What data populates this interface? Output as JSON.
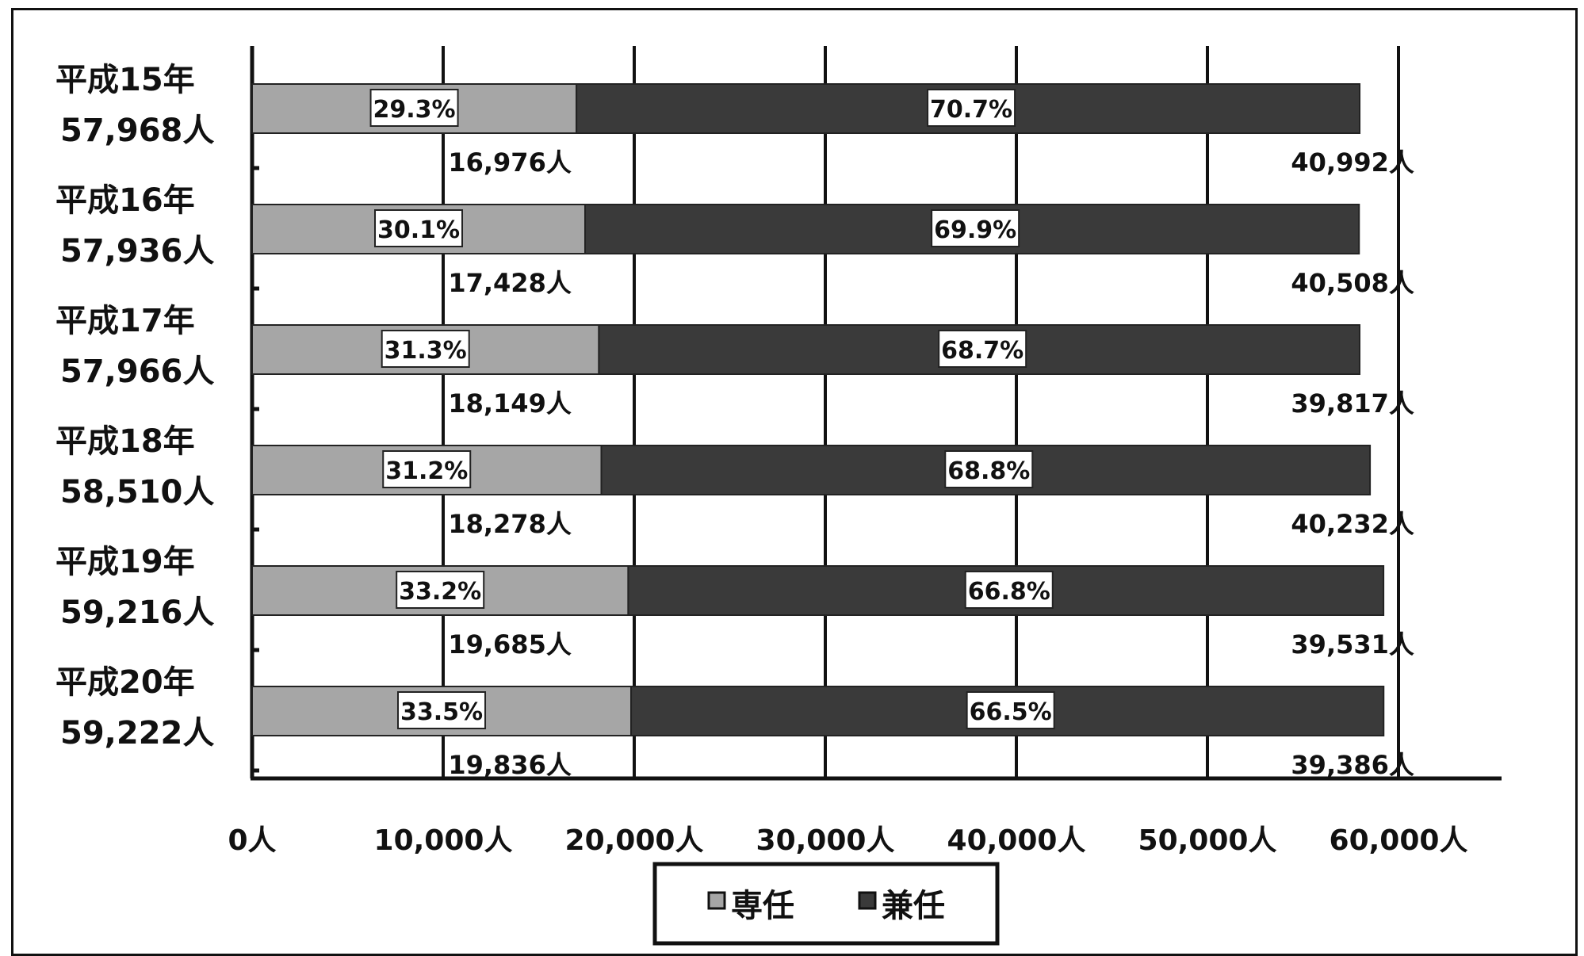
{
  "chart_data": {
    "type": "bar",
    "orientation": "horizontal",
    "stacked": true,
    "categories": [
      "平成15年",
      "平成16年",
      "平成17年",
      "平成18年",
      "平成19年",
      "平成20年"
    ],
    "category_totals": [
      "57,968人",
      "57,936人",
      "57,966人",
      "58,510人",
      "59,216人",
      "59,222人"
    ],
    "series": [
      {
        "name": "専任",
        "color": "#a6a6a6",
        "values": [
          16976,
          17428,
          18149,
          18278,
          19685,
          19836
        ],
        "value_labels": [
          "16,976人",
          "17,428人",
          "18,149人",
          "18,278人",
          "19,685人",
          "19,836人"
        ],
        "percent_labels": [
          "29.3%",
          "30.1%",
          "31.3%",
          "31.2%",
          "33.2%",
          "33.5%"
        ]
      },
      {
        "name": "兼任",
        "color": "#3a3a3a",
        "values": [
          40992,
          40508,
          39817,
          40232,
          39531,
          39386
        ],
        "value_labels": [
          "40,992人",
          "40,508人",
          "39,817人",
          "40,232人",
          "39,531人",
          "39,386人"
        ],
        "percent_labels": [
          "70.7%",
          "69.9%",
          "68.7%",
          "68.8%",
          "66.8%",
          "66.5%"
        ]
      }
    ],
    "xlim": [
      0,
      60000
    ],
    "x_ticks": [
      0,
      10000,
      20000,
      30000,
      40000,
      50000,
      60000
    ],
    "x_tick_labels": [
      "0人",
      "10,000人",
      "20,000人",
      "30,000人",
      "40,000人",
      "50,000人",
      "60,000人"
    ],
    "grid": true,
    "legend_position": "bottom"
  }
}
